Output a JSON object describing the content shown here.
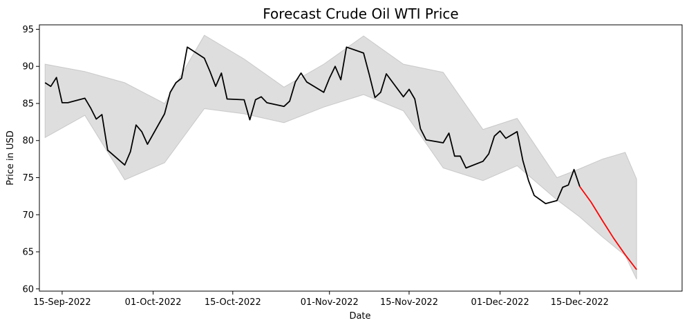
{
  "chart_data": {
    "type": "line",
    "title": "Forecast Crude Oil WTI Price",
    "xlabel": "Date",
    "ylabel": "Price in USD",
    "ylim": [
      59.7,
      95.6
    ],
    "xlim": [
      "2022-09-11",
      "2023-01-02"
    ],
    "grid": false,
    "y_ticks": [
      60,
      65,
      70,
      75,
      80,
      85,
      90,
      95
    ],
    "x_ticks": [
      {
        "date": "2022-09-15",
        "label": "15-Sep-2022"
      },
      {
        "date": "2022-10-01",
        "label": "01-Oct-2022"
      },
      {
        "date": "2022-10-15",
        "label": "15-Oct-2022"
      },
      {
        "date": "2022-11-01",
        "label": "01-Nov-2022"
      },
      {
        "date": "2022-11-15",
        "label": "15-Nov-2022"
      },
      {
        "date": "2022-12-01",
        "label": "01-Dec-2022"
      },
      {
        "date": "2022-12-15",
        "label": "15-Dec-2022"
      }
    ],
    "colors": {
      "history": "#000000",
      "forecast": "#ff0000",
      "band": "#c8c8c8"
    },
    "series": [
      {
        "values": [
          [
            "2022-09-12",
            87.8
          ],
          [
            "2022-09-13",
            87.3
          ],
          [
            "2022-09-14",
            88.5
          ],
          [
            "2022-09-15",
            85.1
          ],
          [
            "2022-09-16",
            85.1
          ],
          [
            "2022-09-19",
            85.7
          ],
          [
            "2022-09-20",
            84.4
          ],
          [
            "2022-09-21",
            82.9
          ],
          [
            "2022-09-22",
            83.5
          ],
          [
            "2022-09-23",
            78.7
          ],
          [
            "2022-09-26",
            76.7
          ],
          [
            "2022-09-27",
            78.5
          ],
          [
            "2022-09-28",
            82.1
          ],
          [
            "2022-09-29",
            81.2
          ],
          [
            "2022-09-30",
            79.5
          ],
          [
            "2022-10-03",
            83.6
          ],
          [
            "2022-10-04",
            86.5
          ],
          [
            "2022-10-05",
            87.8
          ],
          [
            "2022-10-06",
            88.4
          ],
          [
            "2022-10-07",
            92.6
          ],
          [
            "2022-10-10",
            91.1
          ],
          [
            "2022-10-11",
            89.3
          ],
          [
            "2022-10-12",
            87.3
          ],
          [
            "2022-10-13",
            89.1
          ],
          [
            "2022-10-14",
            85.6
          ],
          [
            "2022-10-17",
            85.5
          ],
          [
            "2022-10-18",
            82.8
          ],
          [
            "2022-10-19",
            85.5
          ],
          [
            "2022-10-20",
            85.9
          ],
          [
            "2022-10-21",
            85.1
          ],
          [
            "2022-10-24",
            84.6
          ],
          [
            "2022-10-25",
            85.3
          ],
          [
            "2022-10-26",
            87.9
          ],
          [
            "2022-10-27",
            89.1
          ],
          [
            "2022-10-28",
            87.9
          ],
          [
            "2022-10-31",
            86.5
          ],
          [
            "2022-11-01",
            88.4
          ],
          [
            "2022-11-02",
            90.0
          ],
          [
            "2022-11-03",
            88.2
          ],
          [
            "2022-11-04",
            92.6
          ],
          [
            "2022-11-07",
            91.8
          ],
          [
            "2022-11-08",
            88.9
          ],
          [
            "2022-11-09",
            85.8
          ],
          [
            "2022-11-10",
            86.5
          ],
          [
            "2022-11-11",
            89.0
          ],
          [
            "2022-11-14",
            85.9
          ],
          [
            "2022-11-15",
            86.9
          ],
          [
            "2022-11-16",
            85.6
          ],
          [
            "2022-11-17",
            81.6
          ],
          [
            "2022-11-18",
            80.1
          ],
          [
            "2022-11-21",
            79.7
          ],
          [
            "2022-11-22",
            81.0
          ],
          [
            "2022-11-23",
            77.9
          ],
          [
            "2022-11-24",
            77.9
          ],
          [
            "2022-11-25",
            76.3
          ],
          [
            "2022-11-28",
            77.2
          ],
          [
            "2022-11-29",
            78.2
          ],
          [
            "2022-11-30",
            80.6
          ],
          [
            "2022-12-01",
            81.3
          ],
          [
            "2022-12-02",
            80.3
          ],
          [
            "2022-12-04",
            81.2
          ],
          [
            "2022-12-05",
            77.3
          ],
          [
            "2022-12-06",
            74.6
          ],
          [
            "2022-12-07",
            72.6
          ],
          [
            "2022-12-09",
            71.5
          ],
          [
            "2022-12-11",
            71.9
          ],
          [
            "2022-12-12",
            73.7
          ],
          [
            "2022-12-13",
            74.0
          ],
          [
            "2022-12-14",
            76.1
          ],
          [
            "2022-12-15",
            73.8
          ]
        ]
      },
      {
        "values": [
          [
            "2022-12-15",
            73.8
          ],
          [
            "2022-12-17",
            71.7
          ],
          [
            "2022-12-19",
            69.2
          ],
          [
            "2022-12-21",
            66.8
          ],
          [
            "2022-12-23",
            64.6
          ],
          [
            "2022-12-25",
            62.6
          ]
        ]
      }
    ],
    "confidence_band": {
      "upper": [
        [
          "2022-09-12",
          90.3
        ],
        [
          "2022-09-19",
          89.3
        ],
        [
          "2022-09-26",
          87.8
        ],
        [
          "2022-10-03",
          85.0
        ],
        [
          "2022-10-10",
          94.2
        ],
        [
          "2022-10-17",
          91.0
        ],
        [
          "2022-10-24",
          87.2
        ],
        [
          "2022-10-31",
          90.3
        ],
        [
          "2022-11-07",
          94.1
        ],
        [
          "2022-11-14",
          90.3
        ],
        [
          "2022-11-21",
          89.2
        ],
        [
          "2022-11-28",
          81.5
        ],
        [
          "2022-12-04",
          83.0
        ],
        [
          "2022-12-11",
          75.0
        ],
        [
          "2022-12-15",
          76.2
        ],
        [
          "2022-12-19",
          77.5
        ],
        [
          "2022-12-23",
          78.4
        ],
        [
          "2022-12-25",
          74.8
        ]
      ],
      "lower": [
        [
          "2022-09-12",
          80.4
        ],
        [
          "2022-09-19",
          83.4
        ],
        [
          "2022-09-26",
          74.7
        ],
        [
          "2022-10-03",
          77.0
        ],
        [
          "2022-10-10",
          84.3
        ],
        [
          "2022-10-17",
          83.6
        ],
        [
          "2022-10-24",
          82.4
        ],
        [
          "2022-10-31",
          84.5
        ],
        [
          "2022-11-07",
          86.2
        ],
        [
          "2022-11-14",
          84.0
        ],
        [
          "2022-11-21",
          76.3
        ],
        [
          "2022-11-28",
          74.6
        ],
        [
          "2022-12-04",
          76.6
        ],
        [
          "2022-12-11",
          72.0
        ],
        [
          "2022-12-15",
          69.7
        ],
        [
          "2022-12-19",
          67.0
        ],
        [
          "2022-12-23",
          64.5
        ],
        [
          "2022-12-25",
          61.3
        ]
      ]
    }
  }
}
